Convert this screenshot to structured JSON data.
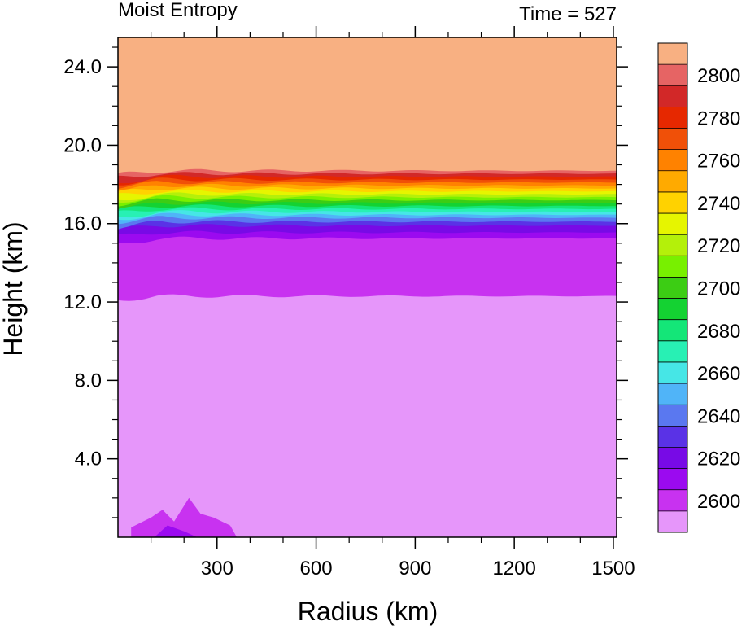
{
  "chart_data": {
    "type": "heatmap",
    "title": "Moist Entropy",
    "subtitle": "Time = 527",
    "xlabel": "Radius (km)",
    "ylabel": "Height (km)",
    "xlim": [
      0,
      1510
    ],
    "ylim": [
      0,
      25.5
    ],
    "x_ticks": [
      300,
      600,
      900,
      1200,
      1500
    ],
    "x_tick_labels": [
      "300",
      "600",
      "900",
      "1200",
      "1500"
    ],
    "y_ticks": [
      4,
      8,
      12,
      16,
      20,
      24
    ],
    "y_tick_labels": [
      "4.0",
      "8.0",
      "12.0",
      "16.0",
      "20.0",
      "24.0"
    ],
    "colorbar": {
      "labels": [
        "2600",
        "2620",
        "2640",
        "2660",
        "2680",
        "2700",
        "2720",
        "2740",
        "2760",
        "2780",
        "2800"
      ],
      "levels": [
        2600,
        2610,
        2620,
        2630,
        2640,
        2650,
        2660,
        2670,
        2680,
        2690,
        2700,
        2710,
        2720,
        2730,
        2740,
        2750,
        2760,
        2770,
        2780,
        2790,
        2800
      ],
      "colors": [
        "#e696fa",
        "#c832f0",
        "#9b0af0",
        "#780ae6",
        "#5a32e6",
        "#5a78f0",
        "#50b4f8",
        "#46e6e6",
        "#28f0b4",
        "#14e678",
        "#14d232",
        "#3ccd14",
        "#78f000",
        "#b4f00a",
        "#e6f500",
        "#ffd200",
        "#ffaa00",
        "#ff8200",
        "#f05008",
        "#e62800",
        "#d22828",
        "#e66464",
        "#f8b082"
      ]
    },
    "field": {
      "bands": [
        {
          "color": "#f8b082",
          "bottom_km": 18.7,
          "top_km": 25.5
        },
        {
          "color": "#e66464",
          "bottom_km": 18.55,
          "top_km": 18.7
        },
        {
          "color": "#d22828",
          "bottom_km": 18.4,
          "top_km": 18.55
        },
        {
          "color": "#e62800",
          "bottom_km": 18.25,
          "top_km": 18.4
        },
        {
          "color": "#f05008",
          "bottom_km": 18.1,
          "top_km": 18.25
        },
        {
          "color": "#ff8200",
          "bottom_km": 17.95,
          "top_km": 18.1
        },
        {
          "color": "#ffaa00",
          "bottom_km": 17.8,
          "top_km": 17.95
        },
        {
          "color": "#ffd200",
          "bottom_km": 17.65,
          "top_km": 17.8
        },
        {
          "color": "#e6f500",
          "bottom_km": 17.5,
          "top_km": 17.65
        },
        {
          "color": "#b4f00a",
          "bottom_km": 17.35,
          "top_km": 17.5
        },
        {
          "color": "#78f000",
          "bottom_km": 17.2,
          "top_km": 17.35
        },
        {
          "color": "#3ccd14",
          "bottom_km": 17.05,
          "top_km": 17.2
        },
        {
          "color": "#14d232",
          "bottom_km": 16.9,
          "top_km": 17.05
        },
        {
          "color": "#14e678",
          "bottom_km": 16.75,
          "top_km": 16.9
        },
        {
          "color": "#28f0b4",
          "bottom_km": 16.6,
          "top_km": 16.75
        },
        {
          "color": "#46e6e6",
          "bottom_km": 16.45,
          "top_km": 16.6
        },
        {
          "color": "#50b4f8",
          "bottom_km": 16.3,
          "top_km": 16.45
        },
        {
          "color": "#5a78f0",
          "bottom_km": 16.1,
          "top_km": 16.3
        },
        {
          "color": "#5a32e6",
          "bottom_km": 15.9,
          "top_km": 16.1
        },
        {
          "color": "#780ae6",
          "bottom_km": 15.55,
          "top_km": 15.9
        },
        {
          "color": "#9b0af0",
          "bottom_km": 15.25,
          "top_km": 15.55
        },
        {
          "color": "#c832f0",
          "bottom_km": 12.3,
          "top_km": 15.25
        },
        {
          "color": "#e696fa",
          "bottom_km": 0,
          "top_km": 12.3
        }
      ]
    }
  }
}
